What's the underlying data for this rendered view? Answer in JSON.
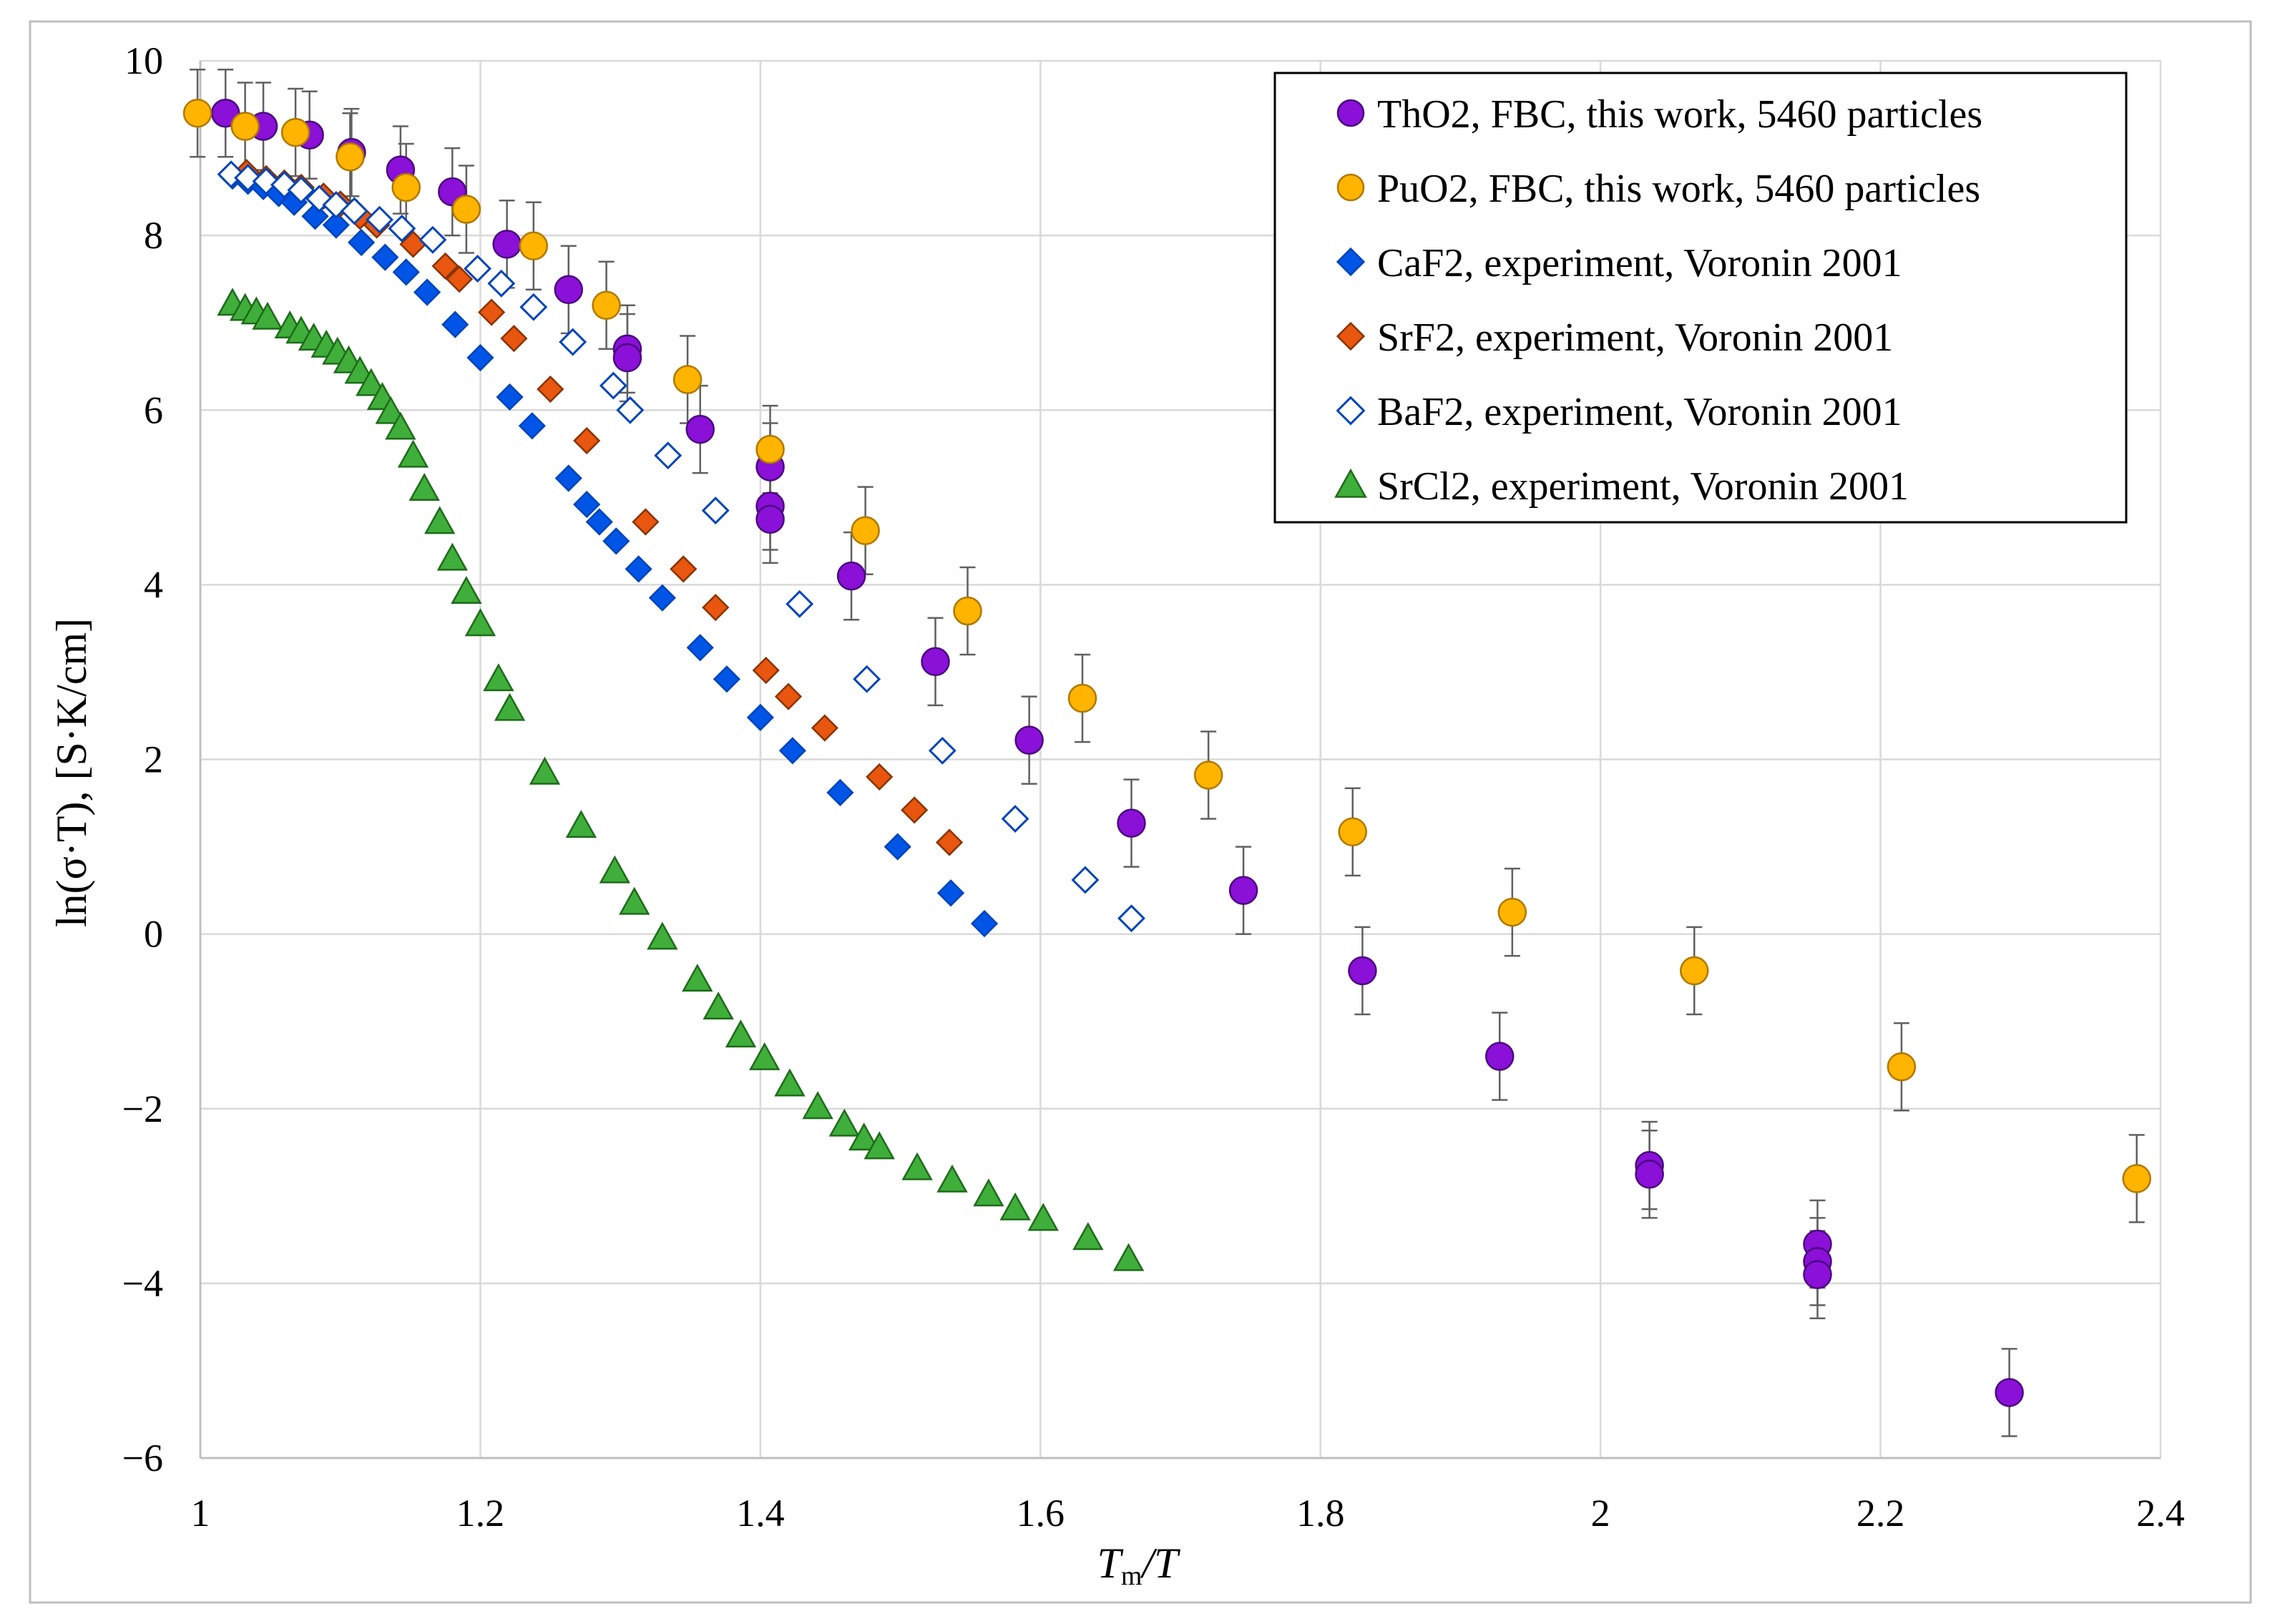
{
  "chart_data": {
    "type": "scatter",
    "title": "",
    "xlabel": "Tm/T",
    "xlabel_main": "T",
    "xlabel_sub": "m",
    "xlabel_tail": "/T",
    "ylabel": "ln(σ·T), [S·K/cm]",
    "xlim": [
      1,
      2.4
    ],
    "ylim": [
      -6,
      10
    ],
    "xticks": [
      1,
      1.2,
      1.4,
      1.6,
      1.8,
      2,
      2.2,
      2.4
    ],
    "xtick_labels": [
      "1",
      "1.2",
      "1.4",
      "1.6",
      "1.8",
      "2",
      "2.2",
      "2.4"
    ],
    "yticks": [
      -6,
      -4,
      -2,
      0,
      2,
      4,
      6,
      8,
      10
    ],
    "ytick_labels": [
      "−6",
      "−4",
      "−2",
      "0",
      "2",
      "4",
      "6",
      "8",
      "10"
    ],
    "grid": true,
    "legend_position": "top-right",
    "series": [
      {
        "name": "ThO2, FBC, this work, 5460 particles",
        "marker": "circle",
        "fill": "#8B10D8",
        "stroke": "#4A0A80",
        "error": 0.5,
        "points": [
          [
            1.018,
            9.4
          ],
          [
            1.045,
            9.25
          ],
          [
            1.078,
            9.15
          ],
          [
            1.108,
            8.95
          ],
          [
            1.143,
            8.75
          ],
          [
            1.18,
            8.5
          ],
          [
            1.219,
            7.9
          ],
          [
            1.263,
            7.38
          ],
          [
            1.305,
            6.7
          ],
          [
            1.305,
            6.6
          ],
          [
            1.357,
            5.78
          ],
          [
            1.407,
            5.35
          ],
          [
            1.407,
            4.9
          ],
          [
            1.407,
            4.75
          ],
          [
            1.465,
            4.1
          ],
          [
            1.525,
            3.12
          ],
          [
            1.592,
            2.22
          ],
          [
            1.665,
            1.27
          ],
          [
            1.745,
            0.5
          ],
          [
            1.83,
            -0.42
          ],
          [
            1.928,
            -1.4
          ],
          [
            2.035,
            -2.65
          ],
          [
            2.035,
            -2.75
          ],
          [
            2.155,
            -3.55
          ],
          [
            2.155,
            -3.75
          ],
          [
            2.155,
            -3.9
          ],
          [
            2.292,
            -5.25
          ]
        ]
      },
      {
        "name": "PuO2, FBC, this work, 5460 particles",
        "marker": "circle",
        "fill": "#FFB400",
        "stroke": "#B07800",
        "error": 0.5,
        "points": [
          [
            0.998,
            9.4
          ],
          [
            1.032,
            9.25
          ],
          [
            1.068,
            9.18
          ],
          [
            1.107,
            8.9
          ],
          [
            1.147,
            8.55
          ],
          [
            1.19,
            8.3
          ],
          [
            1.238,
            7.88
          ],
          [
            1.29,
            7.2
          ],
          [
            1.348,
            6.35
          ],
          [
            1.407,
            5.55
          ],
          [
            1.475,
            4.62
          ],
          [
            1.548,
            3.7
          ],
          [
            1.63,
            2.7
          ],
          [
            1.72,
            1.82
          ],
          [
            1.823,
            1.17
          ],
          [
            1.937,
            0.25
          ],
          [
            2.067,
            -0.42
          ],
          [
            2.215,
            -1.52
          ],
          [
            2.383,
            -2.8
          ]
        ]
      },
      {
        "name": "CaF2, experiment, Voronin 2001",
        "marker": "diamond-filled",
        "fill": "#0055E6",
        "stroke": "#0044BB",
        "points": [
          [
            1.023,
            8.68
          ],
          [
            1.034,
            8.62
          ],
          [
            1.045,
            8.56
          ],
          [
            1.056,
            8.48
          ],
          [
            1.067,
            8.38
          ],
          [
            1.082,
            8.22
          ],
          [
            1.097,
            8.12
          ],
          [
            1.115,
            7.92
          ],
          [
            1.132,
            7.75
          ],
          [
            1.147,
            7.58
          ],
          [
            1.162,
            7.35
          ],
          [
            1.182,
            6.98
          ],
          [
            1.2,
            6.6
          ],
          [
            1.221,
            6.15
          ],
          [
            1.237,
            5.82
          ],
          [
            1.263,
            5.22
          ],
          [
            1.276,
            4.92
          ],
          [
            1.285,
            4.72
          ],
          [
            1.297,
            4.5
          ],
          [
            1.313,
            4.18
          ],
          [
            1.33,
            3.85
          ],
          [
            1.357,
            3.28
          ],
          [
            1.376,
            2.92
          ],
          [
            1.4,
            2.48
          ],
          [
            1.423,
            2.1
          ],
          [
            1.457,
            1.62
          ],
          [
            1.498,
            1.0
          ],
          [
            1.536,
            0.47
          ],
          [
            1.56,
            0.12
          ]
        ]
      },
      {
        "name": "SrF2, experiment, Voronin 2001",
        "marker": "diamond-filled",
        "fill": "#E8560F",
        "stroke": "#8A3300",
        "points": [
          [
            1.033,
            8.72
          ],
          [
            1.047,
            8.65
          ],
          [
            1.06,
            8.6
          ],
          [
            1.072,
            8.55
          ],
          [
            1.088,
            8.45
          ],
          [
            1.1,
            8.36
          ],
          [
            1.114,
            8.22
          ],
          [
            1.126,
            8.12
          ],
          [
            1.152,
            7.9
          ],
          [
            1.175,
            7.65
          ],
          [
            1.185,
            7.5
          ],
          [
            1.208,
            7.12
          ],
          [
            1.224,
            6.82
          ],
          [
            1.25,
            6.24
          ],
          [
            1.276,
            5.65
          ],
          [
            1.318,
            4.72
          ],
          [
            1.345,
            4.18
          ],
          [
            1.368,
            3.74
          ],
          [
            1.404,
            3.02
          ],
          [
            1.42,
            2.72
          ],
          [
            1.446,
            2.36
          ],
          [
            1.485,
            1.8
          ],
          [
            1.51,
            1.42
          ],
          [
            1.535,
            1.05
          ]
        ]
      },
      {
        "name": "BaF2, experiment, Voronin 2001",
        "marker": "diamond-open",
        "fill": "#ffffff",
        "stroke": "#0044BB",
        "points": [
          [
            1.022,
            8.7
          ],
          [
            1.034,
            8.66
          ],
          [
            1.047,
            8.62
          ],
          [
            1.06,
            8.58
          ],
          [
            1.072,
            8.52
          ],
          [
            1.085,
            8.42
          ],
          [
            1.097,
            8.35
          ],
          [
            1.11,
            8.28
          ],
          [
            1.128,
            8.18
          ],
          [
            1.144,
            8.08
          ],
          [
            1.166,
            7.95
          ],
          [
            1.198,
            7.62
          ],
          [
            1.215,
            7.45
          ],
          [
            1.238,
            7.18
          ],
          [
            1.266,
            6.78
          ],
          [
            1.295,
            6.28
          ],
          [
            1.307,
            6.0
          ],
          [
            1.334,
            5.48
          ],
          [
            1.368,
            4.85
          ],
          [
            1.428,
            3.78
          ],
          [
            1.476,
            2.92
          ],
          [
            1.53,
            2.1
          ],
          [
            1.582,
            1.32
          ],
          [
            1.632,
            0.62
          ],
          [
            1.665,
            0.18
          ]
        ]
      },
      {
        "name": "SrCl2, experiment, Voronin 2001",
        "marker": "triangle",
        "fill": "#3FAE3A",
        "stroke": "#1E6B1A",
        "points": [
          [
            1.023,
            7.22
          ],
          [
            1.032,
            7.16
          ],
          [
            1.04,
            7.12
          ],
          [
            1.048,
            7.06
          ],
          [
            1.064,
            6.96
          ],
          [
            1.072,
            6.9
          ],
          [
            1.081,
            6.82
          ],
          [
            1.09,
            6.74
          ],
          [
            1.098,
            6.66
          ],
          [
            1.106,
            6.56
          ],
          [
            1.114,
            6.44
          ],
          [
            1.122,
            6.3
          ],
          [
            1.13,
            6.14
          ],
          [
            1.136,
            5.98
          ],
          [
            1.143,
            5.8
          ],
          [
            1.152,
            5.48
          ],
          [
            1.16,
            5.1
          ],
          [
            1.171,
            4.72
          ],
          [
            1.18,
            4.3
          ],
          [
            1.19,
            3.92
          ],
          [
            1.2,
            3.55
          ],
          [
            1.213,
            2.92
          ],
          [
            1.221,
            2.58
          ],
          [
            1.246,
            1.85
          ],
          [
            1.272,
            1.24
          ],
          [
            1.296,
            0.72
          ],
          [
            1.31,
            0.36
          ],
          [
            1.33,
            -0.04
          ],
          [
            1.355,
            -0.52
          ],
          [
            1.37,
            -0.84
          ],
          [
            1.386,
            -1.16
          ],
          [
            1.403,
            -1.42
          ],
          [
            1.421,
            -1.72
          ],
          [
            1.441,
            -1.98
          ],
          [
            1.46,
            -2.18
          ],
          [
            1.474,
            -2.34
          ],
          [
            1.485,
            -2.44
          ],
          [
            1.512,
            -2.68
          ],
          [
            1.537,
            -2.82
          ],
          [
            1.563,
            -2.98
          ],
          [
            1.582,
            -3.14
          ],
          [
            1.602,
            -3.26
          ],
          [
            1.634,
            -3.48
          ],
          [
            1.663,
            -3.72
          ]
        ]
      }
    ]
  }
}
